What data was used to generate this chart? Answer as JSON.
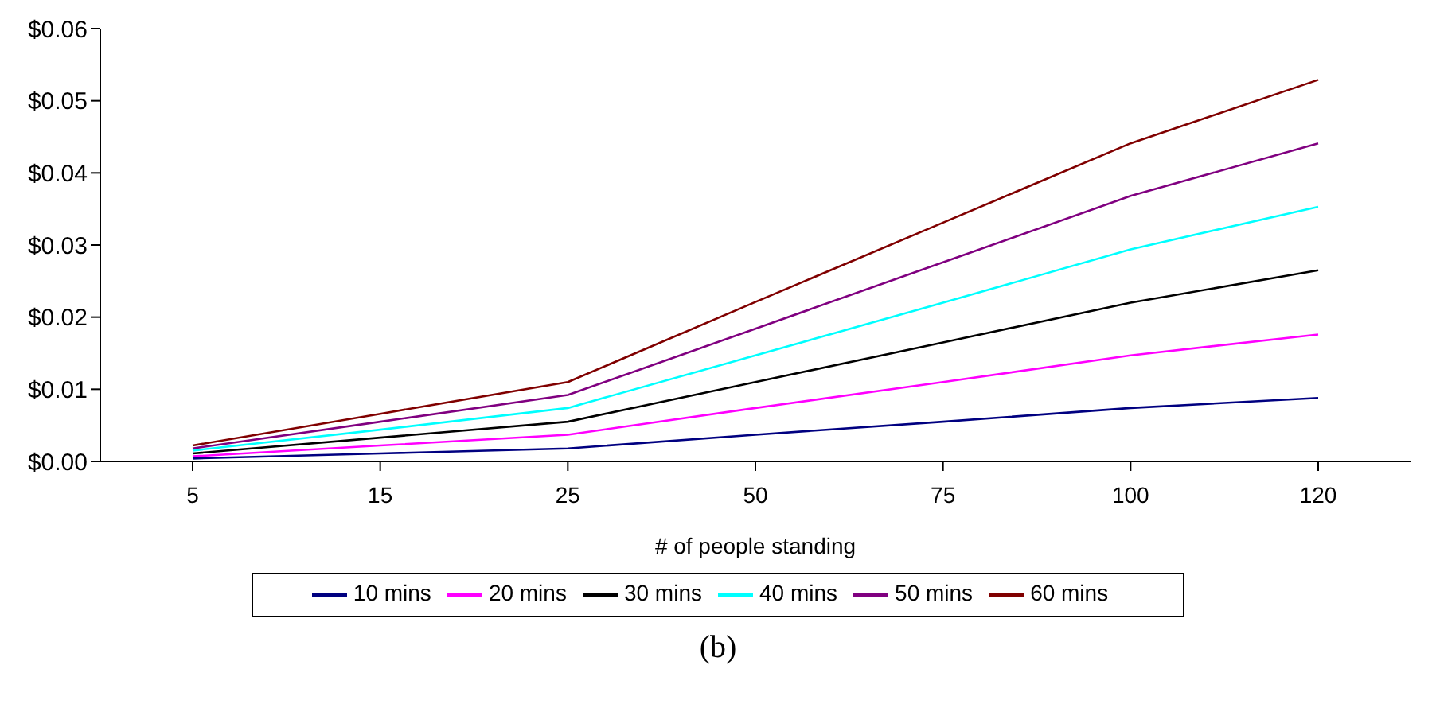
{
  "chart_data": {
    "type": "line",
    "xlabel": "# of people standing",
    "categories": [
      "5",
      "15",
      "25",
      "50",
      "75",
      "100",
      "120"
    ],
    "series": [
      {
        "name": "10 mins",
        "color": "#000080",
        "values": [
          0.0004,
          0.0011,
          0.0018,
          0.0037,
          0.0055,
          0.0074,
          0.0088
        ]
      },
      {
        "name": "20 mins",
        "color": "#ff00ff",
        "values": [
          0.0007,
          0.0022,
          0.0037,
          0.0074,
          0.011,
          0.0147,
          0.0176
        ]
      },
      {
        "name": "30 mins",
        "color": "#000000",
        "values": [
          0.0011,
          0.0033,
          0.0055,
          0.011,
          0.0165,
          0.022,
          0.0265
        ]
      },
      {
        "name": "40 mins",
        "color": "#00ffff",
        "values": [
          0.0015,
          0.0044,
          0.0074,
          0.0147,
          0.022,
          0.0294,
          0.0353
        ]
      },
      {
        "name": "50 mins",
        "color": "#800080",
        "values": [
          0.0018,
          0.0055,
          0.0092,
          0.0184,
          0.0276,
          0.0368,
          0.0441
        ]
      },
      {
        "name": "60 mins",
        "color": "#800000",
        "values": [
          0.0022,
          0.0066,
          0.011,
          0.0221,
          0.0331,
          0.0441,
          0.0529
        ]
      }
    ],
    "ylim": [
      0,
      0.06
    ],
    "yticks": [
      {
        "value": 0,
        "label": "$0.00"
      },
      {
        "value": 0.01,
        "label": "$0.01"
      },
      {
        "value": 0.02,
        "label": "$0.02"
      },
      {
        "value": 0.03,
        "label": "$0.03"
      },
      {
        "value": 0.04,
        "label": "$0.04"
      },
      {
        "value": 0.05,
        "label": "$0.05"
      },
      {
        "value": 0.06,
        "label": "$0.06"
      }
    ],
    "legend": "bottom",
    "marker": "none",
    "line_style": "solid",
    "annotations": [
      "(b)"
    ]
  }
}
